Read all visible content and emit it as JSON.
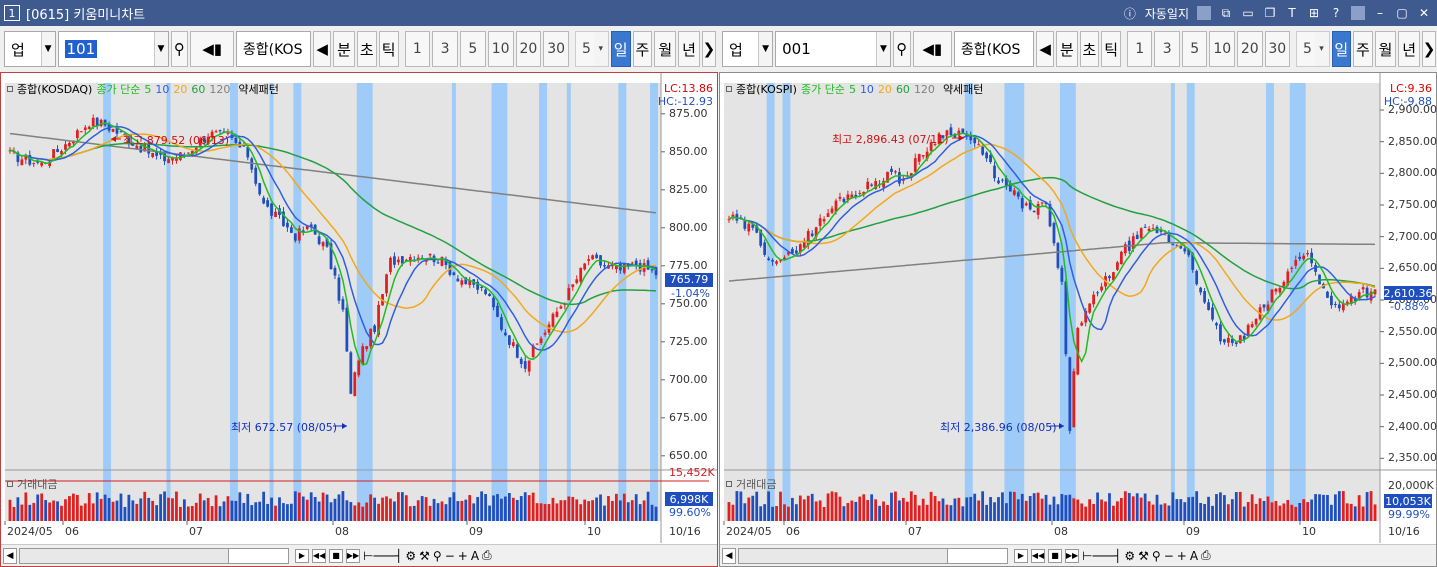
{
  "titlebar": {
    "number": "1",
    "title": "[0615] 키움미니차트",
    "autolog_label": "자동일지"
  },
  "colors": {
    "up": "#e02020",
    "down": "#1f4fbf",
    "highlight": "#9ecbf7",
    "ma5": "#22bb22",
    "ma10": "#2e5fe0",
    "ma20": "#f2a81d",
    "ma60": "#23a040",
    "ma120": "#808080"
  },
  "left": {
    "toolbar": {
      "market": "업",
      "code": "101",
      "index_name": "종합(KOS",
      "min_btn": "분",
      "sec_btn": "초",
      "tick_btn": "틱",
      "periods": [
        "1",
        "3",
        "5",
        "10",
        "20",
        "30"
      ],
      "count": "5",
      "day_btn": "일",
      "week_btn": "주",
      "month_btn": "월",
      "year_btn": "년"
    },
    "legend": {
      "name": "종합(KOSDAQ)",
      "ma_label": "종가 단순",
      "ma5": "5",
      "ma10": "10",
      "ma20": "20",
      "ma60": "60",
      "ma120": "120",
      "pattern": "약세패턴"
    },
    "lc": "LC:13.86",
    "hc": "HC:-12.93",
    "yticks": [
      "875.00",
      "850.00",
      "825.00",
      "800.00",
      "775.00",
      "750.00",
      "725.00",
      "700.00",
      "675.00",
      "650.00"
    ],
    "current_price": "765.79",
    "change": "-1.04%",
    "high_annot": "최고 879.52 (06/13)",
    "low_annot": "최저 672.57 (08/05)",
    "volume_label": "거래대금",
    "volume_top": "15,452K",
    "volume_current": "6,998K",
    "volume_pct": "99.60%",
    "xlabels": [
      "2024/05",
      "06",
      "07",
      "08",
      "09",
      "10"
    ],
    "xend": "10/16",
    "chart_data": {
      "type": "candlestick",
      "ylim": [
        640,
        890
      ],
      "high": {
        "value": 879.52,
        "date": "06/13"
      },
      "low": {
        "value": 672.57,
        "date": "08/05"
      },
      "last": 765.79
    }
  },
  "right": {
    "toolbar": {
      "market": "업",
      "code": "001",
      "index_name": "종합(KOS",
      "min_btn": "분",
      "sec_btn": "초",
      "tick_btn": "틱",
      "periods": [
        "1",
        "3",
        "5",
        "10",
        "20",
        "30"
      ],
      "count": "5",
      "day_btn": "일",
      "week_btn": "주",
      "month_btn": "월",
      "year_btn": "년"
    },
    "legend": {
      "name": "종합(KOSPI)",
      "ma_label": "종가 단순",
      "ma5": "5",
      "ma10": "10",
      "ma20": "20",
      "ma60": "60",
      "ma120": "120",
      "pattern": "약세패턴"
    },
    "lc": "LC:9.36",
    "hc": "HC:-9.88",
    "yticks": [
      "2,900.00",
      "2,850.00",
      "2,800.00",
      "2,750.00",
      "2,700.00",
      "2,650.00",
      "2,600.00",
      "2,550.00",
      "2,500.00",
      "2,450.00",
      "2,400.00",
      "2,350.00"
    ],
    "current_price": "2,610.36",
    "change": "-0.88%",
    "high_annot": "최고 2,896.43 (07/11)",
    "low_annot": "최저 2,386.96 (08/05)",
    "volume_label": "거래대금",
    "volume_top": "20,000K",
    "volume_current": "10,053K",
    "volume_pct": "99.99%",
    "xlabels": [
      "2024/05",
      "06",
      "07",
      "08",
      "09",
      "10"
    ],
    "xend": "10/16",
    "chart_data": {
      "type": "candlestick",
      "ylim": [
        2330,
        2930
      ],
      "high": {
        "value": 2896.43,
        "date": "07/11"
      },
      "low": {
        "value": 2386.96,
        "date": "08/05"
      },
      "last": 2610.36
    }
  }
}
